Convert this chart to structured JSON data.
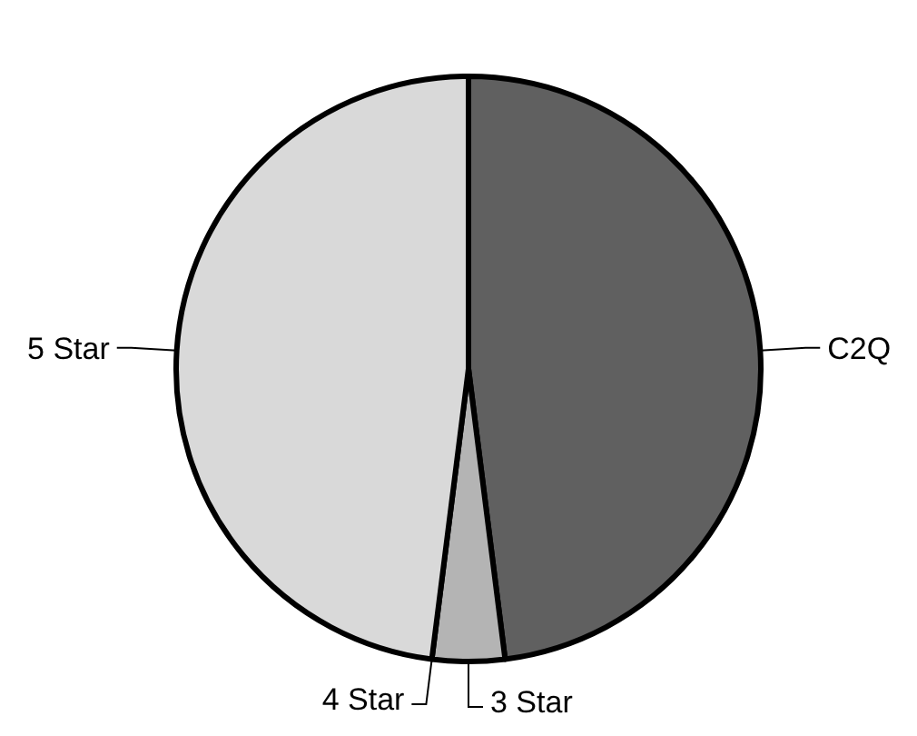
{
  "chart_data": {
    "type": "pie",
    "categories": [
      "C2Q",
      "3 Star",
      "4 Star",
      "5 Star"
    ],
    "values": [
      48,
      4,
      0,
      48
    ],
    "colors": [
      "#606060",
      "#b4b4b4",
      null,
      "#d9d9d9"
    ]
  }
}
